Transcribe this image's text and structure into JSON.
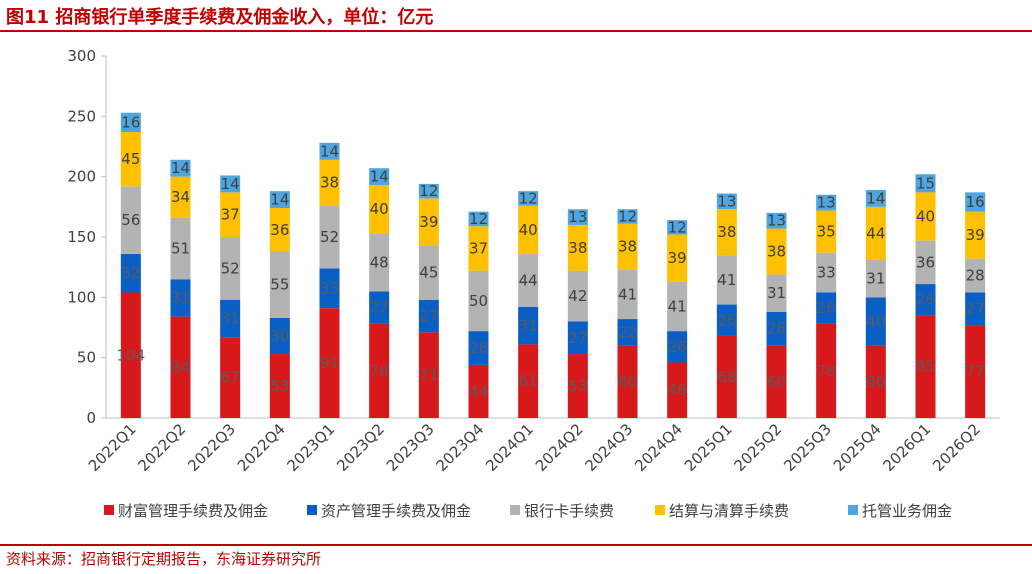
{
  "header": {
    "title": "图11  招商银行单季度手续费及佣金收入，单位：亿元"
  },
  "footer": {
    "source": "资料来源：招商银行定期报告，东海证券研究所"
  },
  "colors": {
    "accent": "#c00000"
  },
  "chart_data": {
    "type": "bar",
    "stacked": true,
    "ylim": [
      0,
      300
    ],
    "yticks": [
      0,
      50,
      100,
      150,
      200,
      250,
      300
    ],
    "grid": false,
    "legend_position": "bottom",
    "categories": [
      "2022Q1",
      "2022Q2",
      "2022Q3",
      "2022Q4",
      "2023Q1",
      "2023Q2",
      "2023Q3",
      "2023Q4",
      "2024Q1",
      "2024Q2",
      "2024Q3",
      "2024Q4",
      "2025Q1",
      "2025Q2",
      "2025Q3",
      "2025Q4",
      "2026Q1",
      "2026Q2"
    ],
    "series": [
      {
        "name": "财富管理手续费及佣金",
        "color": "#d7191c",
        "label_color": "#5a5a5a",
        "values": [
          104,
          84,
          67,
          53,
          91,
          78,
          71,
          44,
          61,
          53,
          60,
          46,
          68,
          60,
          78,
          60,
          85,
          77
        ]
      },
      {
        "name": "资产管理手续费及佣金",
        "color": "#0a5fc4",
        "label_color": "#5a5a5a",
        "values": [
          32,
          31,
          31,
          30,
          33,
          27,
          27,
          28,
          31,
          27,
          22,
          26,
          26,
          28,
          26,
          40,
          26,
          27
        ]
      },
      {
        "name": "银行卡手续费",
        "color": "#b3b3b3",
        "label_color": "#404040",
        "values": [
          56,
          51,
          52,
          55,
          52,
          48,
          45,
          50,
          44,
          42,
          41,
          41,
          41,
          31,
          33,
          31,
          36,
          28
        ]
      },
      {
        "name": "结算与清算手续费",
        "color": "#ffc000",
        "label_color": "#404040",
        "values": [
          45,
          34,
          37,
          36,
          38,
          40,
          39,
          37,
          40,
          38,
          38,
          39,
          38,
          38,
          35,
          44,
          40,
          39
        ]
      },
      {
        "name": "托管业务佣金",
        "color": "#4ea5e0",
        "label_color": "#404040",
        "values": [
          16,
          14,
          14,
          14,
          14,
          14,
          12,
          12,
          12,
          13,
          12,
          12,
          13,
          13,
          13,
          14,
          15,
          16
        ]
      }
    ]
  }
}
